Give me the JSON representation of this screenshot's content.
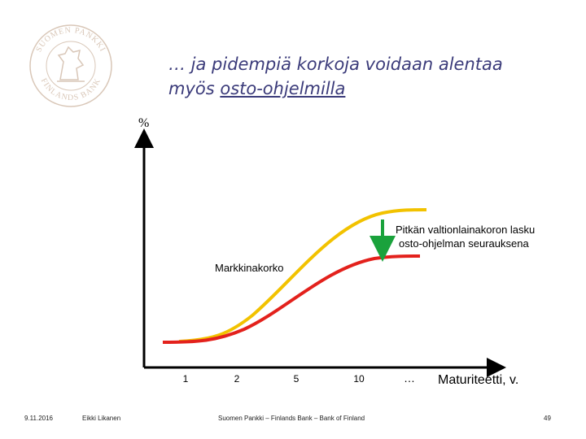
{
  "slide": {
    "title_prefix": "… ja pidempiä korkoja voidaan alentaa",
    "title_line2_prefix": "myös ",
    "title_line2_underlined": "osto-ohjelmilla",
    "logo_text_top": "SUOMEN PANKKI",
    "logo_text_bottom": "FINLANDS BANK"
  },
  "footer": {
    "date": "9.11.2016",
    "author": "Eikki Likanen",
    "org": "Suomen Pankki – Finlands Bank – Bank of Finland",
    "page": "49"
  },
  "colors": {
    "yellow": "#f2c200",
    "red": "#e3211c",
    "arrow": "#1aa23c",
    "title": "#3b3b7a",
    "logo": "#d9c7b8"
  },
  "chart_data": {
    "type": "line",
    "ylabel": "%",
    "xlabel": "Maturiteetti, v.",
    "x_ticks": [
      "1",
      "2",
      "5",
      "10",
      "…"
    ],
    "series": [
      {
        "color": "#f2c200"
      },
      {
        "color": "#e3211c"
      }
    ],
    "annotations": {
      "market_rate": "Markkinakorko",
      "note_line1": "Pitkän valtionlainakoron lasku",
      "note_line2": "osto-ohjelman seurauksena"
    },
    "grid": false
  }
}
